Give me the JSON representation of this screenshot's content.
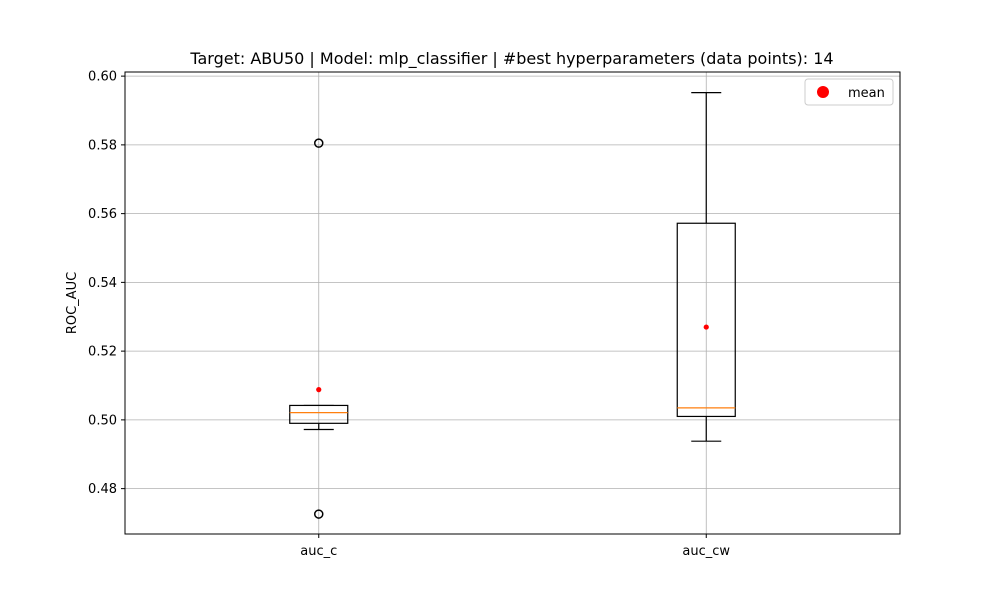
{
  "chart_data": {
    "type": "box",
    "title": "Target: ABU50 | Model: mlp_classifier | #best hyperparameters (data points): 14",
    "xlabel": "",
    "ylabel": "ROC_AUC",
    "categories": [
      "auc_c",
      "auc_cw"
    ],
    "ylim": [
      0.4668,
      0.6012
    ],
    "yticks": [
      0.48,
      0.5,
      0.52,
      0.54,
      0.56,
      0.58,
      0.6
    ],
    "ytick_labels": [
      "0.48",
      "0.50",
      "0.52",
      "0.54",
      "0.56",
      "0.58",
      "0.60"
    ],
    "grid": true,
    "legend": {
      "position": "top-right",
      "entries": [
        "mean"
      ]
    },
    "colors": {
      "box": "#000000",
      "median": "#ff7f0e",
      "mean": "#ff0000",
      "grid": "#b0b0b0"
    },
    "boxes": [
      {
        "name": "auc_c",
        "whisker_low": 0.4972,
        "q1": 0.499,
        "median": 0.5021,
        "q3": 0.5042,
        "whisker_high": 0.5042,
        "mean": 0.5088,
        "outliers": [
          0.5805,
          0.4726
        ]
      },
      {
        "name": "auc_cw",
        "whisker_low": 0.4938,
        "q1": 0.501,
        "median": 0.5035,
        "q3": 0.5572,
        "whisker_high": 0.5952,
        "mean": 0.527,
        "outliers": []
      }
    ]
  }
}
